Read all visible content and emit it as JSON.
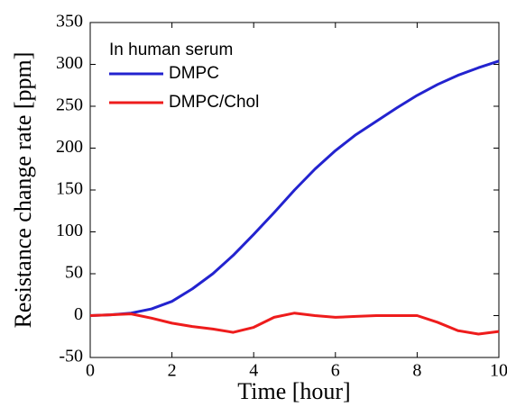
{
  "chart_data": {
    "type": "line",
    "x_label": "Time [hour]",
    "y_label": "Resistance change rate [ppm]",
    "legend_title": "In human serum",
    "legend": "upper left",
    "x": [
      0,
      0.5,
      1,
      1.5,
      2,
      2.5,
      3,
      3.5,
      4,
      4.5,
      5,
      5.5,
      6,
      6.5,
      7,
      7.5,
      8,
      8.5,
      9,
      9.5,
      10
    ],
    "series": [
      {
        "name": "DMPC",
        "color": "#2323cf",
        "values": [
          0,
          1,
          3,
          8,
          17,
          32,
          50,
          72,
          97,
          123,
          150,
          175,
          197,
          216,
          232,
          248,
          263,
          276,
          287,
          296,
          304
        ]
      },
      {
        "name": "DMPC/Chol",
        "color": "#ee1c1c",
        "values": [
          0,
          1,
          2,
          -3,
          -9,
          -13,
          -16,
          -20,
          -14,
          -2,
          3,
          0,
          -2,
          -1,
          0,
          0,
          0,
          -8,
          -18,
          -22,
          -19
        ]
      }
    ],
    "xlim": [
      0,
      10
    ],
    "xticks": [
      0,
      2,
      4,
      6,
      8,
      10
    ],
    "ylim": [
      -50,
      350
    ],
    "yticks": [
      -50,
      0,
      50,
      100,
      150,
      200,
      250,
      300,
      350
    ]
  }
}
